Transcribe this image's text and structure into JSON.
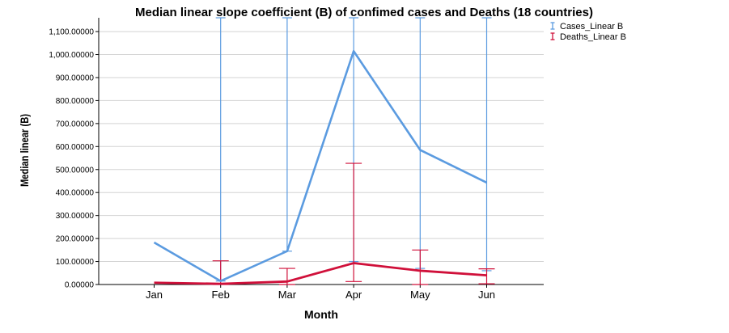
{
  "chart_data": {
    "type": "line",
    "title": "Median linear slope coefficient (B) of confimed cases and Deaths (18 countries)",
    "xlabel": "Month",
    "ylabel": "Median linear (B)",
    "categories": [
      "Jan",
      "Feb",
      "Mar",
      "Apr",
      "May",
      "Jun"
    ],
    "ylim": [
      0,
      1160
    ],
    "yticks": [
      0,
      100,
      200,
      300,
      400,
      500,
      600,
      700,
      800,
      900,
      1000,
      1100
    ],
    "ytick_labels": [
      "0.00000",
      "100.00000",
      "200.00000",
      "300.00000",
      "400.00000",
      "500.00000",
      "600.00000",
      "700.00000",
      "800.00000",
      "900.00000",
      "1,000.00000",
      "1,100.00000"
    ],
    "grid": true,
    "legend_position": "top-right",
    "series": [
      {
        "name": "Cases_Linear B",
        "color": "#5B9BE0",
        "values": [
          183,
          15,
          145,
          1015,
          585,
          443
        ],
        "error_low": [
          null,
          15,
          145,
          100,
          70,
          60
        ],
        "error_high": [
          null,
          1160,
          1160,
          1160,
          1160,
          1160
        ]
      },
      {
        "name": "Deaths_Linear B",
        "color": "#D0103A",
        "values": [
          8,
          3,
          13,
          93,
          60,
          40
        ],
        "error_low": [
          null,
          0,
          0,
          13,
          0,
          3
        ],
        "error_high": [
          null,
          103,
          70,
          527,
          150,
          68
        ]
      }
    ]
  }
}
